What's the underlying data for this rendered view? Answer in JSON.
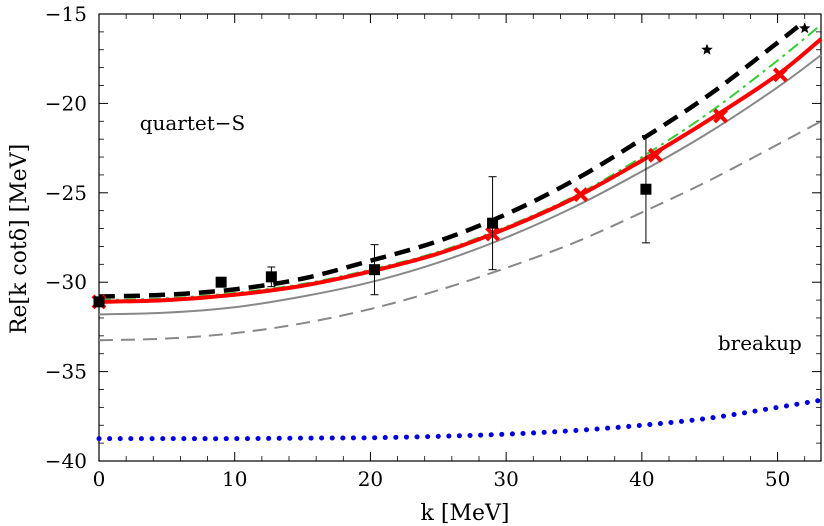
{
  "chart_data": {
    "type": "line",
    "title": "",
    "xlabel": "k [MeV]",
    "ylabel": "Re[k cotδ] [MeV]",
    "xlim": [
      0,
      53.2
    ],
    "ylim": [
      -40,
      -15
    ],
    "xticks": [
      0,
      10,
      20,
      30,
      40,
      50
    ],
    "yticks": [
      -40,
      -35,
      -30,
      -25,
      -20,
      -15
    ],
    "grid": false,
    "annotations": [
      {
        "text": "quartet−S",
        "x": 3,
        "y": -21.5
      },
      {
        "text": "breakup",
        "x": 45.6,
        "y": -33.8
      }
    ],
    "series": [
      {
        "name": "thin-gray-dashed",
        "style": "dashed",
        "color": "#888888",
        "x": [
          0,
          5,
          10,
          15,
          20,
          25,
          30,
          35,
          40,
          45,
          50,
          53.2
        ],
        "y": [
          -33.25,
          -33.15,
          -32.85,
          -32.3,
          -31.5,
          -30.45,
          -29.2,
          -27.8,
          -26.1,
          -24.3,
          -22.3,
          -21.0
        ]
      },
      {
        "name": "thin-gray-solid",
        "style": "solid",
        "color": "#888888",
        "x": [
          0,
          5,
          10,
          15,
          20,
          25,
          30,
          35,
          40,
          45,
          50,
          53.2
        ],
        "y": [
          -31.8,
          -31.7,
          -31.4,
          -30.8,
          -30.0,
          -28.9,
          -27.5,
          -25.8,
          -23.8,
          -21.6,
          -19.1,
          -17.3
        ]
      },
      {
        "name": "green-dash-dot",
        "style": "dashdot",
        "color": "#33cc33",
        "x": [
          0,
          5,
          10,
          15,
          20,
          25,
          30,
          35,
          40,
          45,
          50,
          53.2
        ],
        "y": [
          -31.0,
          -30.9,
          -30.6,
          -30.1,
          -29.3,
          -28.3,
          -26.9,
          -25.2,
          -23.0,
          -20.5,
          -17.6,
          -15.6
        ]
      },
      {
        "name": "red-solid",
        "style": "solid",
        "color": "#ff0000",
        "x": [
          0,
          5,
          10,
          15,
          20,
          25,
          30,
          35,
          40,
          45,
          50,
          53.2
        ],
        "y": [
          -31.1,
          -31.0,
          -30.7,
          -30.2,
          -29.4,
          -28.4,
          -27.0,
          -25.3,
          -23.2,
          -20.9,
          -18.4,
          -16.4
        ]
      },
      {
        "name": "black-dashed",
        "style": "dashed",
        "color": "#000000",
        "x": [
          0,
          5,
          10,
          15,
          20,
          25,
          30,
          35,
          40,
          45,
          50,
          52
        ],
        "y": [
          -30.8,
          -30.7,
          -30.4,
          -29.8,
          -28.8,
          -27.7,
          -26.2,
          -24.3,
          -22.0,
          -19.5,
          -16.6,
          -15.4
        ]
      },
      {
        "name": "blue-dotted",
        "style": "dotted",
        "color": "#0000dd",
        "x": [
          0,
          5,
          10,
          15,
          20,
          25,
          30,
          35,
          40,
          45,
          50,
          53.2
        ],
        "y": [
          -38.75,
          -38.75,
          -38.75,
          -38.72,
          -38.7,
          -38.62,
          -38.5,
          -38.3,
          -38.0,
          -37.6,
          -37.0,
          -36.6
        ]
      },
      {
        "name": "red-crosses",
        "style": "marker-x",
        "color": "#ff0000",
        "x": [
          0,
          29,
          35.5,
          41,
          45.8,
          50.2
        ],
        "y": [
          -31.1,
          -27.3,
          -25.1,
          -22.9,
          -20.7,
          -18.4
        ]
      },
      {
        "name": "black-squares",
        "style": "marker-square",
        "color": "#000000",
        "x": [
          0,
          9,
          12.7,
          20.3,
          29,
          40.3
        ],
        "y": [
          -31.1,
          -30.0,
          -29.7,
          -29.3,
          -26.7,
          -24.8
        ],
        "error_low": [
          0,
          0,
          0.55,
          1.4,
          2.6,
          3.0
        ],
        "error_high": [
          0,
          0,
          0.55,
          1.4,
          2.6,
          3.0
        ]
      },
      {
        "name": "black-stars",
        "style": "marker-star",
        "color": "#000000",
        "x": [
          44.8,
          52.0
        ],
        "y": [
          -17.0,
          -15.8
        ]
      }
    ]
  }
}
